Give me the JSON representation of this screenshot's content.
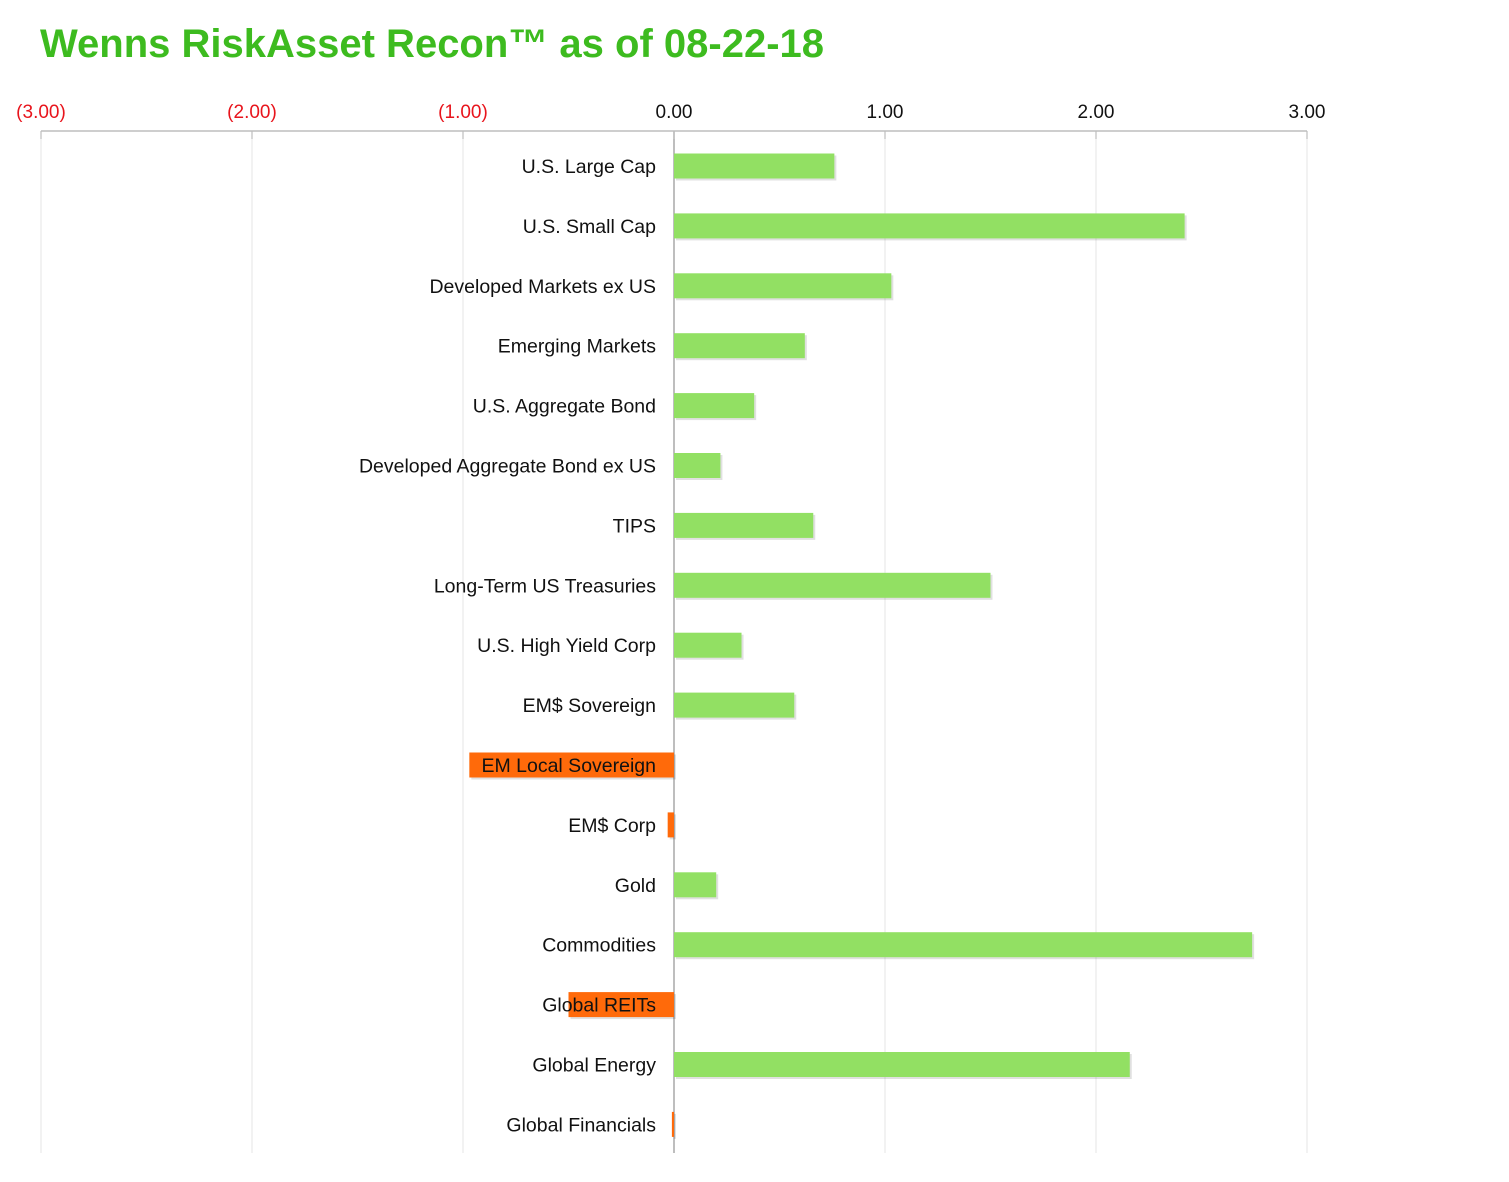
{
  "chart_data": {
    "type": "bar",
    "orientation": "horizontal",
    "title": "Wenns RiskAsset Recon™ as of 08-22-18",
    "xlabel": "",
    "ylabel": "",
    "xlim": [
      -3,
      3
    ],
    "ticks": [
      -3,
      -2,
      -1,
      0,
      1,
      2,
      3
    ],
    "tick_labels": [
      "(3.00)",
      "(2.00)",
      "(1.00)",
      "0.00",
      "1.00",
      "2.00",
      "3.00"
    ],
    "axis_position": "top",
    "grid": true,
    "categories": [
      "U.S. Large Cap",
      "U.S. Small Cap",
      "Developed Markets ex US",
      "Emerging Markets",
      "U.S. Aggregate Bond",
      "Developed Aggregate Bond ex US",
      "TIPS",
      "Long-Term US Treasuries",
      "U.S. High Yield Corp",
      "EM$ Sovereign",
      "EM Local Sovereign",
      "EM$ Corp",
      "Gold",
      "Commodities",
      "Global REITs",
      "Global Energy",
      "Global Financials"
    ],
    "values": [
      0.76,
      2.42,
      1.03,
      0.62,
      0.38,
      0.22,
      0.66,
      1.5,
      0.32,
      0.57,
      -0.97,
      -0.03,
      0.2,
      2.74,
      -0.5,
      2.16,
      -0.01
    ],
    "colors": {
      "title": "#3dbb1f",
      "positive": "#92e063",
      "negative": "#ff6a0a",
      "negative_tick": "#e8141c",
      "positive_tick": "#111111",
      "grid": "#e6e6e6",
      "axis": "#bdbdbd"
    }
  }
}
